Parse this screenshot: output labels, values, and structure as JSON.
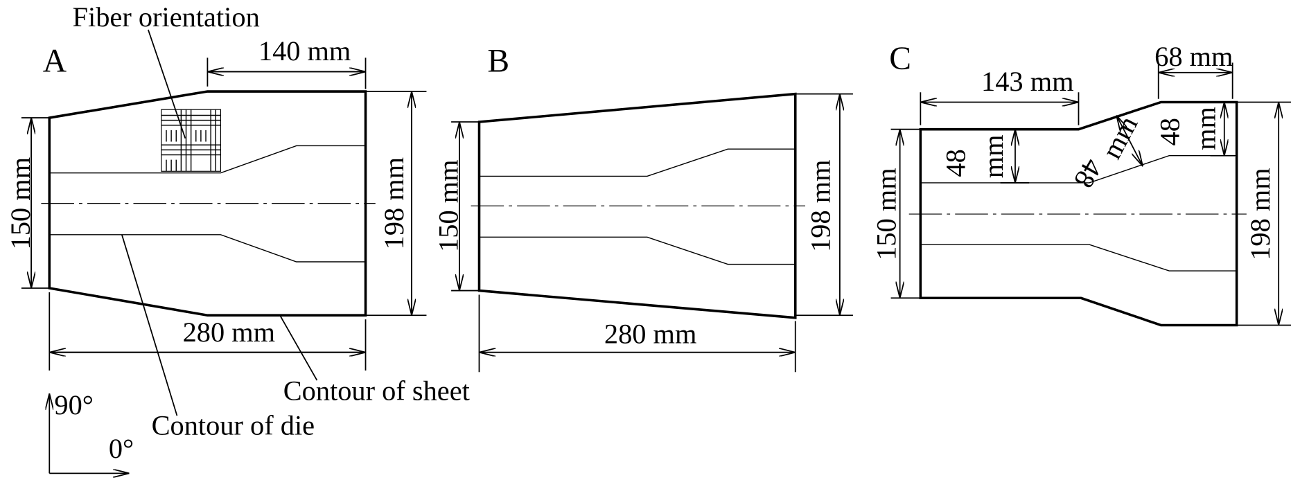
{
  "panels": [
    {
      "label": "A",
      "dimensions": {
        "top": "140 mm",
        "left": "150 mm",
        "right": "198 mm",
        "bottom": "280 mm"
      }
    },
    {
      "label": "B",
      "dimensions": {
        "left": "150 mm",
        "right": "198 mm",
        "bottom": "280 mm"
      }
    },
    {
      "label": "C",
      "dimensions": {
        "top_left": "143 mm",
        "top_right": "68 mm",
        "left": "150 mm",
        "right": "198 mm",
        "offsets": [
          {
            "value": "48",
            "unit": "mm"
          },
          {
            "value": "48",
            "unit": "mm"
          },
          {
            "value": "48",
            "unit": "mm"
          }
        ]
      }
    }
  ],
  "annotations": {
    "fiber_orientation": "Fiber orientation",
    "contour_of_die": "Contour of die",
    "contour_of_sheet": "Contour of sheet"
  },
  "axes": {
    "vertical": "90°",
    "horizontal": "0°"
  }
}
